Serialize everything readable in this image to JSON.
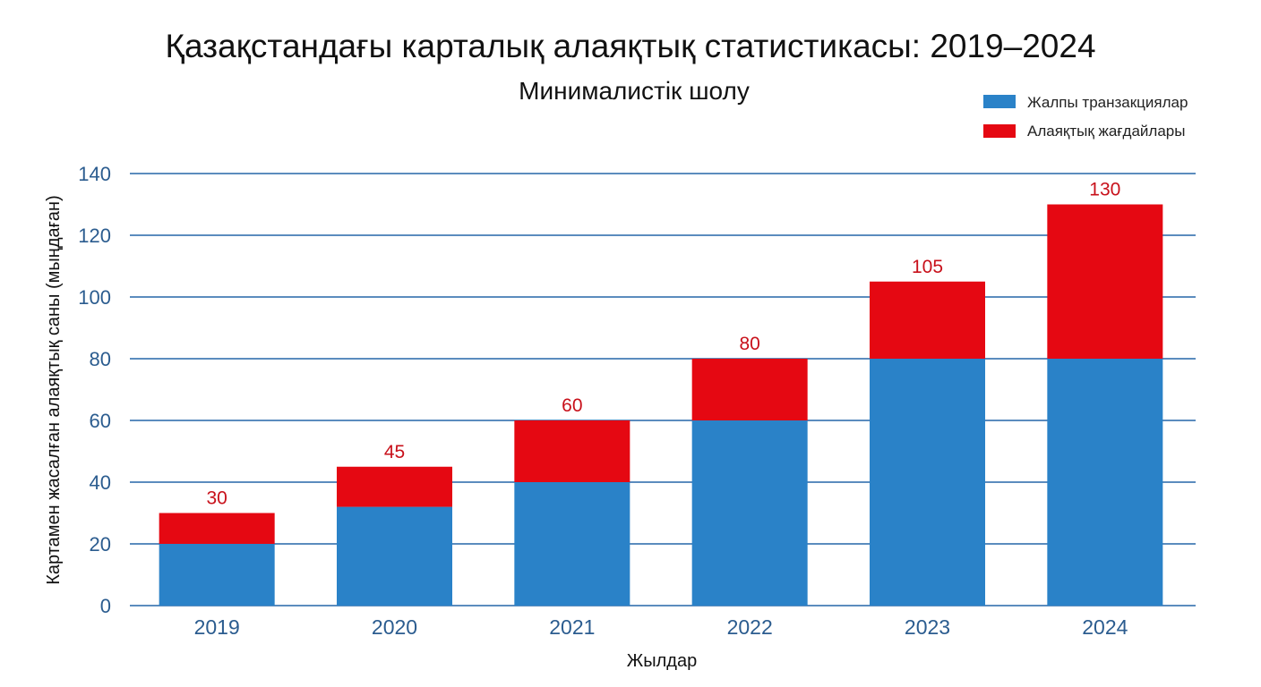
{
  "chart_data": {
    "type": "bar",
    "stacked": true,
    "title": "Қазақстандағы карталық алаяқтық статистикасы: 2019–2024",
    "subtitle": "Минималистік шолу",
    "xlabel": "Жылдар",
    "ylabel": "Картамен жасалған алаяқтық саны (мыңдаған)",
    "ylim": [
      0,
      140
    ],
    "yticks": [
      0,
      20,
      40,
      60,
      80,
      100,
      120,
      140
    ],
    "grid": true,
    "legend_position": "top-right",
    "categories": [
      "2019",
      "2020",
      "2021",
      "2022",
      "2023",
      "2024"
    ],
    "series": [
      {
        "name": "Жалпы транзакциялар",
        "color": "#2a82c8",
        "values": [
          20,
          32,
          40,
          60,
          80,
          80
        ]
      },
      {
        "name": "Алаяқтық жағдайлары",
        "color": "#e50812",
        "values": [
          10,
          13,
          20,
          20,
          25,
          50
        ]
      }
    ],
    "totals": [
      "30",
      "45",
      "60",
      "80",
      "105",
      "130"
    ]
  }
}
